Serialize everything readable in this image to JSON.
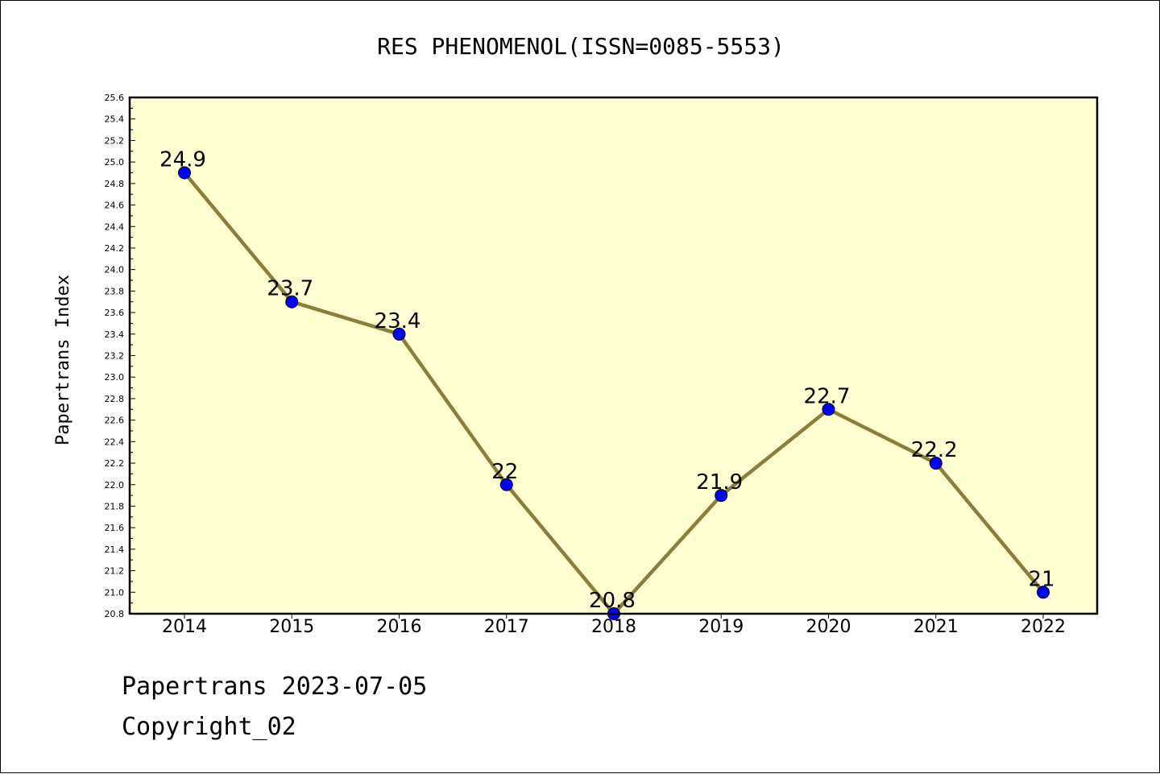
{
  "chart_data": {
    "type": "line",
    "title": "RES PHENOMENOL(ISSN=0085-5553)",
    "xlabel": "",
    "ylabel": "Papertrans Index",
    "categories": [
      "2014",
      "2015",
      "2016",
      "2017",
      "2018",
      "2019",
      "2020",
      "2021",
      "2022"
    ],
    "series": [
      {
        "values": [
          24.9,
          23.7,
          23.4,
          22.0,
          20.8,
          21.9,
          22.7,
          22.2,
          21.0
        ],
        "data_labels": [
          "24.9",
          "23.7",
          "23.4",
          "22",
          "20.8",
          "21.9",
          "22.7",
          "22.2",
          "21"
        ]
      }
    ],
    "ylim": [
      20.8,
      25.6
    ],
    "y_ticks": [
      "20.8",
      "21.0",
      "21.2",
      "21.4",
      "21.6",
      "21.8",
      "22.0",
      "22.2",
      "22.4",
      "22.6",
      "22.8",
      "23.0",
      "23.2",
      "23.4",
      "23.6",
      "23.8",
      "24.0",
      "24.2",
      "24.4",
      "24.6",
      "24.8",
      "25.0",
      "25.2",
      "25.4",
      "25.6"
    ],
    "grid": false,
    "legend": "none",
    "colors": {
      "plot_background": "#ffffd2",
      "line": "#8b7d3a",
      "marker": "#0000ff",
      "marker_edge": "#000000"
    }
  },
  "footer": {
    "line1": "Papertrans 2023-07-05",
    "line2": "Copyright_02"
  }
}
